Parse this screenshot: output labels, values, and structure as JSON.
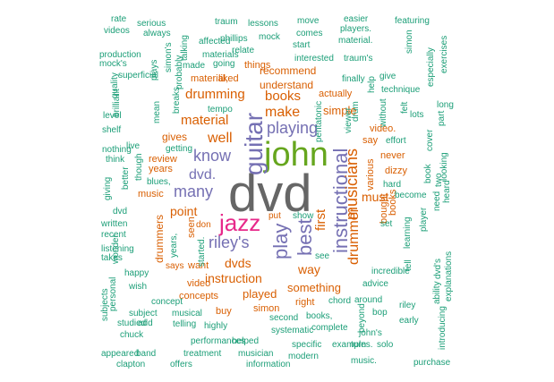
{
  "palette": {
    "grey": "#666666",
    "green": "#66a61e",
    "magenta": "#e7298a",
    "purple": "#7570b3",
    "orange": "#d95f02",
    "teal": "#1b9e77"
  },
  "words": [
    {
      "text": "dvd",
      "color": "grey"
    },
    {
      "text": "john",
      "color": "green"
    },
    {
      "text": "jazz",
      "color": "magenta"
    },
    {
      "text": "guitar",
      "color": "purple"
    },
    {
      "text": "instructional",
      "color": "purple"
    },
    {
      "text": "play",
      "color": "purple"
    },
    {
      "text": "best",
      "color": "purple"
    },
    {
      "text": "playing",
      "color": "purple"
    },
    {
      "text": "riley's",
      "color": "purple"
    },
    {
      "text": "many",
      "color": "purple"
    },
    {
      "text": "dvd.",
      "color": "purple"
    },
    {
      "text": "know",
      "color": "purple"
    },
    {
      "text": "musicians",
      "color": "orange"
    },
    {
      "text": "drummer",
      "color": "orange"
    },
    {
      "text": "make",
      "color": "orange"
    },
    {
      "text": "drumming",
      "color": "orange"
    },
    {
      "text": "books",
      "color": "orange"
    },
    {
      "text": "well",
      "color": "orange"
    },
    {
      "text": "material",
      "color": "orange"
    },
    {
      "text": "first",
      "color": "orange"
    },
    {
      "text": "instruction",
      "color": "orange"
    },
    {
      "text": "point",
      "color": "orange"
    },
    {
      "text": "dvds",
      "color": "orange"
    },
    {
      "text": "way",
      "color": "orange"
    },
    {
      "text": "must",
      "color": "orange"
    },
    {
      "text": "something",
      "color": "orange"
    },
    {
      "text": "played",
      "color": "orange"
    },
    {
      "text": "simple",
      "color": "orange"
    },
    {
      "text": "gives",
      "color": "orange"
    },
    {
      "text": "understand",
      "color": "orange"
    },
    {
      "text": "recommend",
      "color": "orange"
    },
    {
      "text": "material,",
      "color": "orange"
    },
    {
      "text": "liked",
      "color": "orange"
    },
    {
      "text": "things",
      "color": "orange"
    },
    {
      "text": "actually",
      "color": "orange"
    },
    {
      "text": "various",
      "color": "orange"
    },
    {
      "text": "bought",
      "color": "orange"
    },
    {
      "text": "books",
      "color": "orange"
    },
    {
      "text": "drummers",
      "color": "orange"
    },
    {
      "text": "want",
      "color": "orange"
    },
    {
      "text": "concepts",
      "color": "orange"
    },
    {
      "text": "video",
      "color": "orange"
    },
    {
      "text": "seen",
      "color": "orange"
    },
    {
      "text": "years",
      "color": "orange"
    },
    {
      "text": "review",
      "color": "orange"
    },
    {
      "text": "music",
      "color": "orange"
    },
    {
      "text": "dizzy",
      "color": "orange"
    },
    {
      "text": "never",
      "color": "orange"
    },
    {
      "text": "video.",
      "color": "orange"
    },
    {
      "text": "say",
      "color": "orange"
    },
    {
      "text": "put",
      "color": "orange"
    },
    {
      "text": "right",
      "color": "orange"
    },
    {
      "text": "buy",
      "color": "orange"
    },
    {
      "text": "simon",
      "color": "orange"
    },
    {
      "text": "don",
      "color": "orange"
    },
    {
      "text": "says",
      "color": "orange"
    },
    {
      "text": "rate",
      "color": "teal"
    },
    {
      "text": "serious",
      "color": "teal"
    },
    {
      "text": "traum",
      "color": "teal"
    },
    {
      "text": "lessons",
      "color": "teal"
    },
    {
      "text": "move",
      "color": "teal"
    },
    {
      "text": "easier",
      "color": "teal"
    },
    {
      "text": "featuring",
      "color": "teal"
    },
    {
      "text": "videos",
      "color": "teal"
    },
    {
      "text": "always",
      "color": "teal"
    },
    {
      "text": "talking",
      "color": "teal"
    },
    {
      "text": "phillips",
      "color": "teal"
    },
    {
      "text": "mock",
      "color": "teal"
    },
    {
      "text": "comes",
      "color": "teal"
    },
    {
      "text": "players.",
      "color": "teal"
    },
    {
      "text": "simon",
      "color": "teal"
    },
    {
      "text": "affected",
      "color": "teal"
    },
    {
      "text": "start",
      "color": "teal"
    },
    {
      "text": "material.",
      "color": "teal"
    },
    {
      "text": "production",
      "color": "teal"
    },
    {
      "text": "simon's",
      "color": "teal"
    },
    {
      "text": "materials",
      "color": "teal"
    },
    {
      "text": "relate",
      "color": "teal"
    },
    {
      "text": "interested",
      "color": "teal"
    },
    {
      "text": "traum's",
      "color": "teal"
    },
    {
      "text": "exercises",
      "color": "teal"
    },
    {
      "text": "mock's",
      "color": "teal"
    },
    {
      "text": "probably",
      "color": "teal"
    },
    {
      "text": "made",
      "color": "teal"
    },
    {
      "text": "going",
      "color": "teal"
    },
    {
      "text": "finally",
      "color": "teal"
    },
    {
      "text": "give",
      "color": "teal"
    },
    {
      "text": "especially",
      "color": "teal"
    },
    {
      "text": "superficial",
      "color": "teal"
    },
    {
      "text": "plays",
      "color": "teal"
    },
    {
      "text": "technique",
      "color": "teal"
    },
    {
      "text": "quality",
      "color": "teal"
    },
    {
      "text": "breaks",
      "color": "teal"
    },
    {
      "text": "help",
      "color": "teal"
    },
    {
      "text": "without",
      "color": "teal"
    },
    {
      "text": "long",
      "color": "teal"
    },
    {
      "text": "brilliant",
      "color": "teal"
    },
    {
      "text": "pentatonic",
      "color": "teal"
    },
    {
      "text": "felt",
      "color": "teal"
    },
    {
      "text": "lots",
      "color": "teal"
    },
    {
      "text": "level",
      "color": "teal"
    },
    {
      "text": "mean",
      "color": "teal"
    },
    {
      "text": "tempo",
      "color": "teal"
    },
    {
      "text": "viewer",
      "color": "teal"
    },
    {
      "text": "drum",
      "color": "teal"
    },
    {
      "text": "part",
      "color": "teal"
    },
    {
      "text": "shelf",
      "color": "teal"
    },
    {
      "text": "getting",
      "color": "teal"
    },
    {
      "text": "effort",
      "color": "teal"
    },
    {
      "text": "nothing",
      "color": "teal"
    },
    {
      "text": "live",
      "color": "teal"
    },
    {
      "text": "though",
      "color": "teal"
    },
    {
      "text": "think",
      "color": "teal"
    },
    {
      "text": "cover",
      "color": "teal"
    },
    {
      "text": "looking",
      "color": "teal"
    },
    {
      "text": "better",
      "color": "teal"
    },
    {
      "text": "giving",
      "color": "teal"
    },
    {
      "text": "blues,",
      "color": "teal"
    },
    {
      "text": "hard",
      "color": "teal"
    },
    {
      "text": "book",
      "color": "teal"
    },
    {
      "text": "heard",
      "color": "teal"
    },
    {
      "text": "become",
      "color": "teal"
    },
    {
      "text": "two",
      "color": "teal"
    },
    {
      "text": "dvd",
      "color": "teal"
    },
    {
      "text": "player",
      "color": "teal"
    },
    {
      "text": "need",
      "color": "teal"
    },
    {
      "text": "written",
      "color": "teal"
    },
    {
      "text": "recent",
      "color": "teal"
    },
    {
      "text": "years,",
      "color": "teal"
    },
    {
      "text": "show",
      "color": "teal"
    },
    {
      "text": "set",
      "color": "teal"
    },
    {
      "text": "learning",
      "color": "teal"
    },
    {
      "text": "wonder",
      "color": "teal"
    },
    {
      "text": "listening",
      "color": "teal"
    },
    {
      "text": "takes",
      "color": "teal"
    },
    {
      "text": "started.",
      "color": "teal"
    },
    {
      "text": "see",
      "color": "teal"
    },
    {
      "text": "tell",
      "color": "teal"
    },
    {
      "text": "dvd's",
      "color": "teal"
    },
    {
      "text": "explanations",
      "color": "teal"
    },
    {
      "text": "incredible",
      "color": "teal"
    },
    {
      "text": "happy",
      "color": "teal"
    },
    {
      "text": "advice",
      "color": "teal"
    },
    {
      "text": "ability",
      "color": "teal"
    },
    {
      "text": "wish",
      "color": "teal"
    },
    {
      "text": "personal",
      "color": "teal"
    },
    {
      "text": "subjects",
      "color": "teal"
    },
    {
      "text": "around",
      "color": "teal"
    },
    {
      "text": "concept",
      "color": "teal"
    },
    {
      "text": "chord",
      "color": "teal"
    },
    {
      "text": "riley",
      "color": "teal"
    },
    {
      "text": "subject",
      "color": "teal"
    },
    {
      "text": "musical",
      "color": "teal"
    },
    {
      "text": "second",
      "color": "teal"
    },
    {
      "text": "books,",
      "color": "teal"
    },
    {
      "text": "beyond",
      "color": "teal"
    },
    {
      "text": "bop",
      "color": "teal"
    },
    {
      "text": "early",
      "color": "teal"
    },
    {
      "text": "studied",
      "color": "teal"
    },
    {
      "text": "add",
      "color": "teal"
    },
    {
      "text": "telling",
      "color": "teal"
    },
    {
      "text": "highly",
      "color": "teal"
    },
    {
      "text": "systematic",
      "color": "teal"
    },
    {
      "text": "complete",
      "color": "teal"
    },
    {
      "text": "john's",
      "color": "teal"
    },
    {
      "text": "introducing",
      "color": "teal"
    },
    {
      "text": "chuck",
      "color": "teal"
    },
    {
      "text": "performances",
      "color": "teal"
    },
    {
      "text": "helped",
      "color": "teal"
    },
    {
      "text": "specific",
      "color": "teal"
    },
    {
      "text": "examples.",
      "color": "teal"
    },
    {
      "text": "turn",
      "color": "teal"
    },
    {
      "text": "solo",
      "color": "teal"
    },
    {
      "text": "appeared",
      "color": "teal"
    },
    {
      "text": "band",
      "color": "teal"
    },
    {
      "text": "treatment",
      "color": "teal"
    },
    {
      "text": "musician",
      "color": "teal"
    },
    {
      "text": "modern",
      "color": "teal"
    },
    {
      "text": "clapton",
      "color": "teal"
    },
    {
      "text": "offers",
      "color": "teal"
    },
    {
      "text": "information",
      "color": "teal"
    },
    {
      "text": "music.",
      "color": "teal"
    },
    {
      "text": "purchase",
      "color": "teal"
    },
    {
      "text": "feeling",
      "color": "teal"
    }
  ]
}
